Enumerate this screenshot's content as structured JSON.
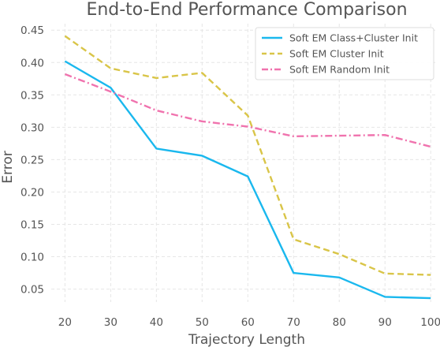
{
  "chart_data": {
    "type": "line",
    "title": "End-to-End Performance Comparison",
    "xlabel": "Trajectory Length",
    "ylabel": "Error",
    "x": [
      20,
      30,
      40,
      50,
      60,
      70,
      80,
      90,
      100
    ],
    "xticks": [
      "20",
      "30",
      "40",
      "50",
      "60",
      "70",
      "80",
      "90",
      "100"
    ],
    "xlim": [
      17,
      101
    ],
    "yticks": [
      "0.05",
      "0.10",
      "0.15",
      "0.20",
      "0.25",
      "0.30",
      "0.35",
      "0.40",
      "0.45"
    ],
    "ylim": [
      0.03,
      0.46
    ],
    "grid": true,
    "legend_position": "top-right",
    "series": [
      {
        "name": "Soft EM Class+Cluster Init",
        "color": "#1ab8ee",
        "style": "solid",
        "values": [
          0.402,
          0.361,
          0.267,
          0.256,
          0.224,
          0.075,
          0.068,
          0.038,
          0.036
        ]
      },
      {
        "name": "Soft EM Cluster Init",
        "color": "#d9c548",
        "style": "dashed",
        "values": [
          0.441,
          0.391,
          0.376,
          0.384,
          0.318,
          0.127,
          0.104,
          0.074,
          0.072
        ]
      },
      {
        "name": "Soft EM Random Init",
        "color": "#f073ae",
        "style": "dashdot",
        "values": [
          0.382,
          0.355,
          0.326,
          0.309,
          0.301,
          0.286,
          0.287,
          0.288,
          0.27
        ]
      }
    ]
  }
}
